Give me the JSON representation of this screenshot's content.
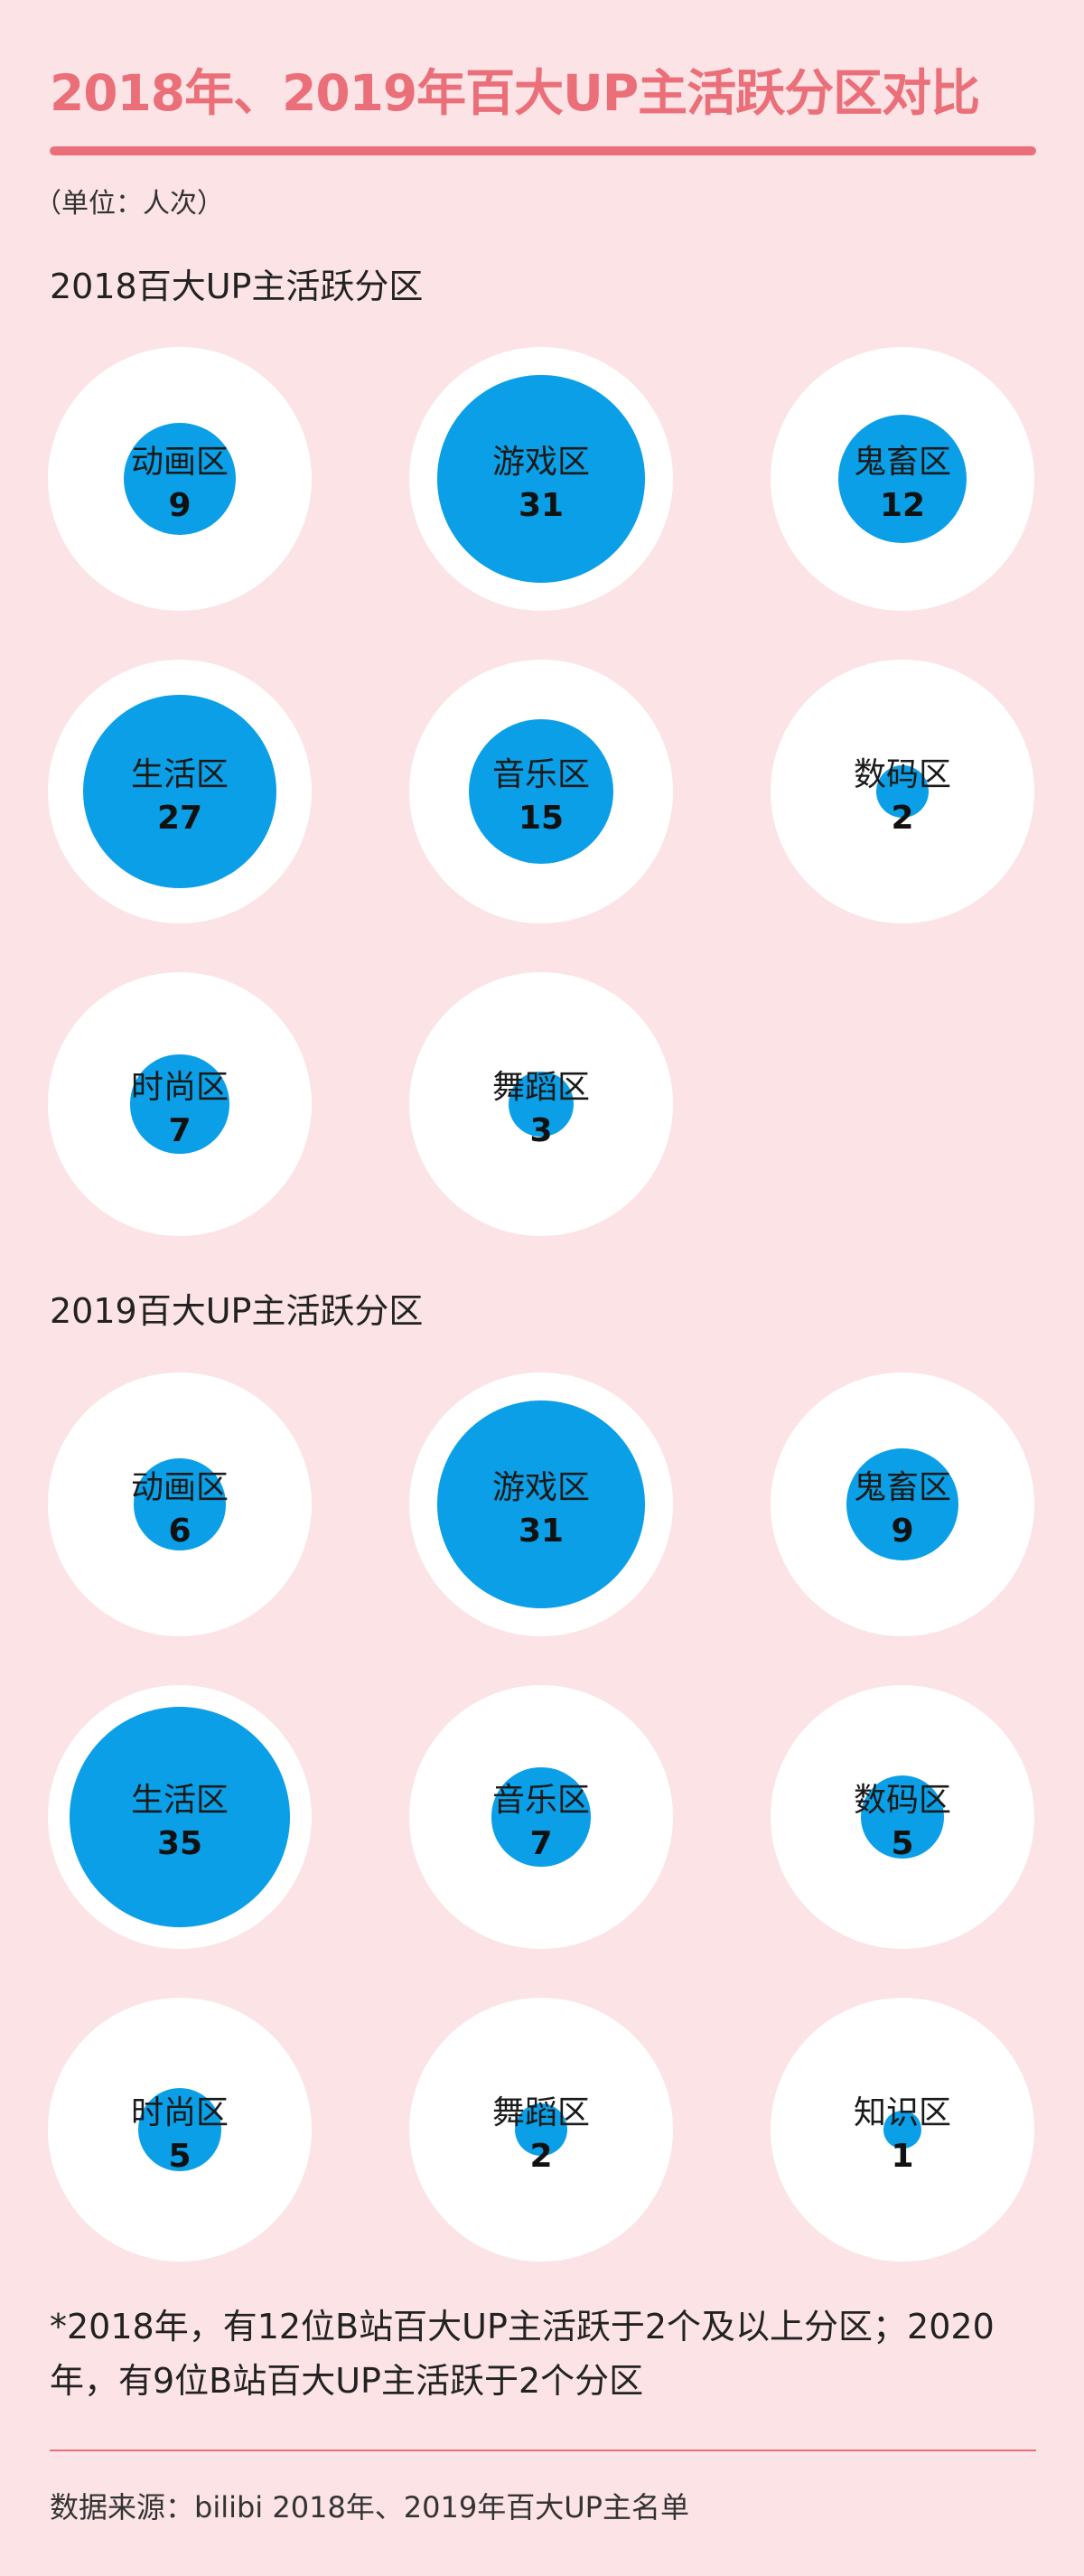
{
  "title": "2018年、2019年百大UP主活跃分区对比",
  "unit": "（单位：人次）",
  "note": "*2018年，有12位B站百大UP主活跃于2个及以上分区；2020年，有9位B站百大UP主活跃于2个分区",
  "source": "数据来源：bilibi 2018年、2019年百大UP主名单",
  "colors": {
    "accent": "#ea6f79",
    "background": "#fbe3e6",
    "bubble": "#0a9fe6",
    "cell": "#ffffff"
  },
  "chart_data": [
    {
      "type": "bubble",
      "title": "2018百大UP主活跃分区",
      "categories": [
        "动画区",
        "游戏区",
        "鬼畜区",
        "生活区",
        "音乐区",
        "数码区",
        "时尚区",
        "舞蹈区"
      ],
      "values": [
        9,
        31,
        12,
        27,
        15,
        2,
        7,
        3
      ]
    },
    {
      "type": "bubble",
      "title": "2019百大UP主活跃分区",
      "categories": [
        "动画区",
        "游戏区",
        "鬼畜区",
        "生活区",
        "音乐区",
        "数码区",
        "时尚区",
        "舞蹈区",
        "知识区"
      ],
      "values": [
        6,
        31,
        9,
        35,
        7,
        5,
        5,
        2,
        1
      ]
    }
  ]
}
